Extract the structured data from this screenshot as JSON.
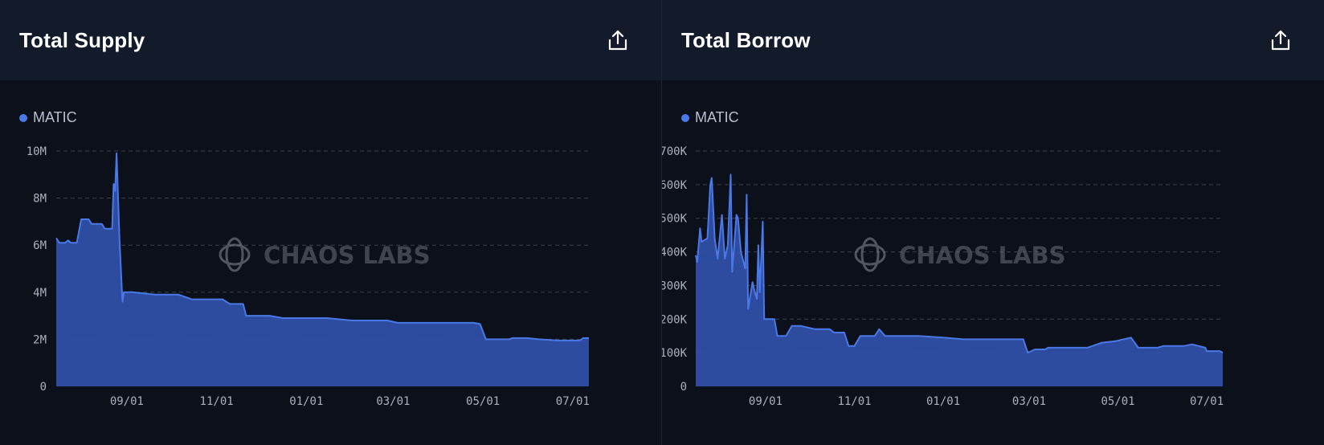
{
  "panels": [
    {
      "title": "Total Supply",
      "legend_label": "MATIC",
      "watermark": "CHAOS LABS",
      "icon": "share-upload-icon"
    },
    {
      "title": "Total Borrow",
      "legend_label": "MATIC",
      "watermark": "CHAOS LABS",
      "icon": "share-upload-icon"
    }
  ],
  "colors": {
    "background": "#0c101a",
    "header": "#131a2a",
    "series_fill": "#2f50a8",
    "series_line": "#4a78e6",
    "grid": "#3a3f4b",
    "text": "#a9b1bf"
  },
  "chart_data": [
    {
      "type": "area",
      "title": "Total Supply",
      "xlabel": "",
      "ylabel": "",
      "x_ticks": [
        "09/01",
        "11/01",
        "01/01",
        "03/01",
        "05/01",
        "07/01"
      ],
      "y_ticks": [
        "0",
        "2M",
        "4M",
        "6M",
        "8M",
        "10M"
      ],
      "ylim": [
        0,
        10000000
      ],
      "grid": true,
      "legend_position": "top-left",
      "series": [
        {
          "name": "MATIC",
          "points": [
            [
              "07/15",
              6300000
            ],
            [
              "07/17",
              6100000
            ],
            [
              "07/21",
              6100000
            ],
            [
              "07/23",
              6200000
            ],
            [
              "07/25",
              6100000
            ],
            [
              "07/29",
              6100000
            ],
            [
              "08/01",
              7100000
            ],
            [
              "08/06",
              7100000
            ],
            [
              "08/08",
              6900000
            ],
            [
              "08/15",
              6900000
            ],
            [
              "08/17",
              6700000
            ],
            [
              "08/22",
              6700000
            ],
            [
              "08/23",
              8600000
            ],
            [
              "08/24",
              8300000
            ],
            [
              "08/25",
              9900000
            ],
            [
              "08/27",
              6200000
            ],
            [
              "08/29",
              3600000
            ],
            [
              "08/30",
              4000000
            ],
            [
              "09/05",
              4000000
            ],
            [
              "09/20",
              3900000
            ],
            [
              "10/06",
              3900000
            ],
            [
              "10/15",
              3700000
            ],
            [
              "11/05",
              3700000
            ],
            [
              "11/10",
              3500000
            ],
            [
              "11/19",
              3500000
            ],
            [
              "11/21",
              3000000
            ],
            [
              "12/07",
              3000000
            ],
            [
              "12/16",
              2900000
            ],
            [
              "01/15",
              2900000
            ],
            [
              "02/01",
              2800000
            ],
            [
              "02/25",
              2800000
            ],
            [
              "03/04",
              2700000
            ],
            [
              "04/01",
              2700000
            ],
            [
              "04/25",
              2700000
            ],
            [
              "04/29",
              2650000
            ],
            [
              "05/03",
              2000000
            ],
            [
              "05/19",
              2000000
            ],
            [
              "05/21",
              2050000
            ],
            [
              "05/31",
              2050000
            ],
            [
              "06/08",
              2000000
            ],
            [
              "06/21",
              1950000
            ],
            [
              "07/06",
              1950000
            ],
            [
              "07/08",
              2050000
            ],
            [
              "07/12",
              2050000
            ]
          ]
        }
      ]
    },
    {
      "type": "area",
      "title": "Total Borrow",
      "xlabel": "",
      "ylabel": "",
      "x_ticks": [
        "09/01",
        "11/01",
        "01/01",
        "03/01",
        "05/01",
        "07/01"
      ],
      "y_ticks": [
        "0",
        "100K",
        "200K",
        "300K",
        "400K",
        "500K",
        "600K",
        "700K"
      ],
      "ylim": [
        0,
        700000
      ],
      "grid": true,
      "legend_position": "top-left",
      "series": [
        {
          "name": "MATIC",
          "points": [
            [
              "07/15",
              390000
            ],
            [
              "07/16",
              370000
            ],
            [
              "07/18",
              470000
            ],
            [
              "07/19",
              430000
            ],
            [
              "07/23",
              440000
            ],
            [
              "07/25",
              600000
            ],
            [
              "07/26",
              620000
            ],
            [
              "07/28",
              440000
            ],
            [
              "07/30",
              380000
            ],
            [
              "08/02",
              510000
            ],
            [
              "08/04",
              380000
            ],
            [
              "08/06",
              420000
            ],
            [
              "08/08",
              630000
            ],
            [
              "08/09",
              340000
            ],
            [
              "08/12",
              510000
            ],
            [
              "08/13",
              500000
            ],
            [
              "08/15",
              400000
            ],
            [
              "08/18",
              350000
            ],
            [
              "08/19",
              570000
            ],
            [
              "08/20",
              230000
            ],
            [
              "08/23",
              310000
            ],
            [
              "08/24",
              290000
            ],
            [
              "08/26",
              260000
            ],
            [
              "08/27",
              420000
            ],
            [
              "08/28",
              280000
            ],
            [
              "08/30",
              490000
            ],
            [
              "08/31",
              200000
            ],
            [
              "09/07",
              200000
            ],
            [
              "09/09",
              150000
            ],
            [
              "09/15",
              150000
            ],
            [
              "09/19",
              180000
            ],
            [
              "09/25",
              180000
            ],
            [
              "10/05",
              170000
            ],
            [
              "10/15",
              170000
            ],
            [
              "10/18",
              160000
            ],
            [
              "10/25",
              160000
            ],
            [
              "10/28",
              120000
            ],
            [
              "11/01",
              120000
            ],
            [
              "11/05",
              150000
            ],
            [
              "11/15",
              150000
            ],
            [
              "11/18",
              170000
            ],
            [
              "11/22",
              150000
            ],
            [
              "12/15",
              150000
            ],
            [
              "01/01",
              145000
            ],
            [
              "01/15",
              140000
            ],
            [
              "02/01",
              140000
            ],
            [
              "02/10",
              140000
            ],
            [
              "02/25",
              140000
            ],
            [
              "02/28",
              100000
            ],
            [
              "03/05",
              110000
            ],
            [
              "03/12",
              110000
            ],
            [
              "03/14",
              115000
            ],
            [
              "04/10",
              115000
            ],
            [
              "04/20",
              130000
            ],
            [
              "04/30",
              135000
            ],
            [
              "05/10",
              145000
            ],
            [
              "05/15",
              115000
            ],
            [
              "05/28",
              115000
            ],
            [
              "06/01",
              120000
            ],
            [
              "06/15",
              120000
            ],
            [
              "06/21",
              125000
            ],
            [
              "06/30",
              115000
            ],
            [
              "07/01",
              105000
            ],
            [
              "07/10",
              105000
            ],
            [
              "07/12",
              100000
            ]
          ]
        }
      ]
    }
  ]
}
